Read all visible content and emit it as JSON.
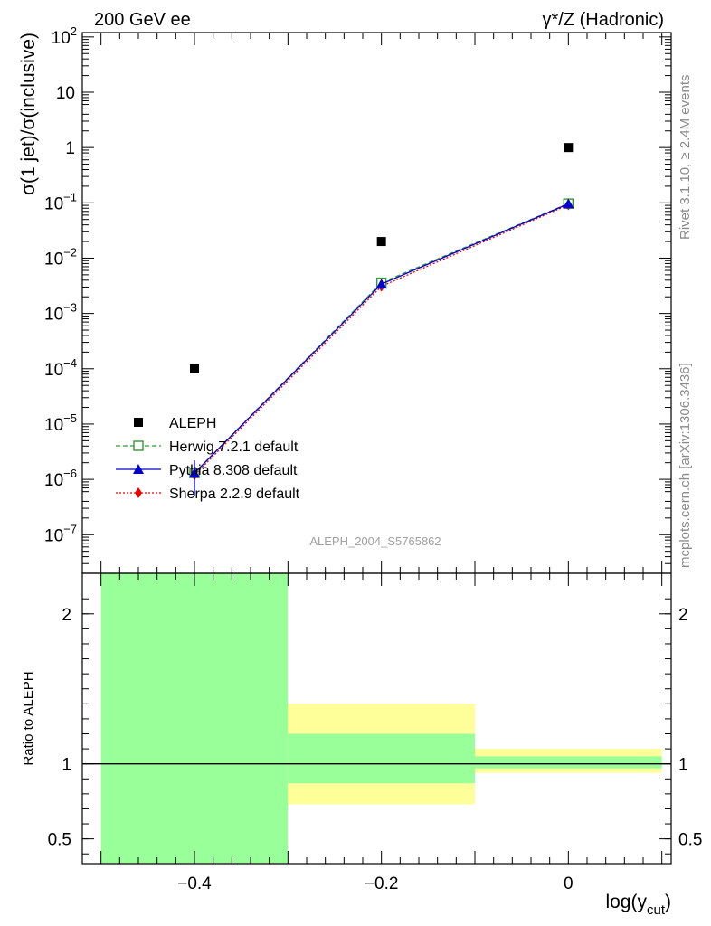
{
  "header": {
    "left": "200 GeV ee",
    "right": "γ*/Z (Hadronic)"
  },
  "side_text": {
    "rivet": "Rivet 3.1.10, ≥ 2.4M events",
    "mcplots": "mcplots.cern.ch [arXiv:1306.3436]"
  },
  "watermark": "ALEPH_2004_S5765862",
  "chart_data": [
    {
      "type": "scatter",
      "ylabel": "σ(1 jet)/σ(inclusive)",
      "yscale": "log",
      "xlim": [
        -0.52,
        0.11
      ],
      "ylim": [
        2e-08,
        120
      ],
      "y_ticks": [
        {
          "value": 100,
          "mantissa": "10",
          "exp": "2"
        },
        {
          "value": 10,
          "mantissa": "10",
          "exp": ""
        },
        {
          "value": 1,
          "mantissa": "1",
          "exp": ""
        },
        {
          "value": 0.1,
          "mantissa": "10",
          "exp": "−1"
        },
        {
          "value": 0.01,
          "mantissa": "10",
          "exp": "−2"
        },
        {
          "value": 0.001,
          "mantissa": "10",
          "exp": "−3"
        },
        {
          "value": 0.0001,
          "mantissa": "10",
          "exp": "−4"
        },
        {
          "value": 1e-05,
          "mantissa": "10",
          "exp": "−5"
        },
        {
          "value": 1e-06,
          "mantissa": "10",
          "exp": "−6"
        },
        {
          "value": 1e-07,
          "mantissa": "10",
          "exp": "−7"
        }
      ],
      "series": [
        {
          "name": "ALEPH",
          "color": "#000000",
          "marker": "square",
          "line": "none",
          "x": [
            -0.4,
            -0.2,
            0.0
          ],
          "y": [
            0.0001,
            0.02,
            1.0
          ]
        },
        {
          "name": "Herwig 7.2.1 default",
          "color": "#339933",
          "marker": "open-square",
          "line": "dashed",
          "x": [
            -0.4,
            -0.2,
            0.0
          ],
          "y": [
            1.3e-06,
            0.0036,
            0.097
          ]
        },
        {
          "name": "Pythia 8.308 default",
          "color": "#0000cc",
          "marker": "triangle",
          "line": "solid",
          "x": [
            -0.4,
            -0.2,
            0.0
          ],
          "y": [
            1.3e-06,
            0.0034,
            0.096
          ],
          "yerr_low": [
            8e-07,
            0,
            0
          ],
          "yerr_high": [
            9e-07,
            0,
            0
          ]
        },
        {
          "name": "Sherpa 2.2.9 default",
          "color": "#ee0000",
          "marker": "diamond",
          "line": "dotted",
          "x": [
            -0.4,
            -0.2,
            0.0
          ],
          "y": [
            1.2e-06,
            0.0031,
            0.092
          ]
        }
      ],
      "legend_position": "bottom-left"
    },
    {
      "type": "area",
      "ylabel": "Ratio to ALEPH",
      "xlabel": "log(y",
      "xlabel_sub": "cut",
      "xlabel_close": ")",
      "xlim": [
        -0.52,
        0.11
      ],
      "ylim": [
        0.335,
        2.27
      ],
      "x_ticks": [
        {
          "value": -0.4,
          "label": "−0.4"
        },
        {
          "value": -0.2,
          "label": "−0.2"
        },
        {
          "value": 0.0,
          "label": "0"
        }
      ],
      "y_ticks": [
        {
          "value": 2,
          "label": "2"
        },
        {
          "value": 1,
          "label": "1"
        },
        {
          "value": 0.5,
          "label": "0.5"
        }
      ],
      "bands": [
        {
          "x_low": -0.5,
          "x_high": -0.3,
          "stat_low": 0.3,
          "stat_high": 2.27,
          "total_low": 0.3,
          "total_high": 2.27
        },
        {
          "x_low": -0.3,
          "x_high": -0.1,
          "stat_low": 0.87,
          "stat_high": 1.2,
          "total_low": 0.73,
          "total_high": 1.4
        },
        {
          "x_low": -0.1,
          "x_high": 0.1,
          "stat_low": 0.97,
          "stat_high": 1.05,
          "total_low": 0.94,
          "total_high": 1.1
        }
      ],
      "band_colors": {
        "stat": "#99ff99",
        "total": "#ffff99"
      }
    }
  ]
}
